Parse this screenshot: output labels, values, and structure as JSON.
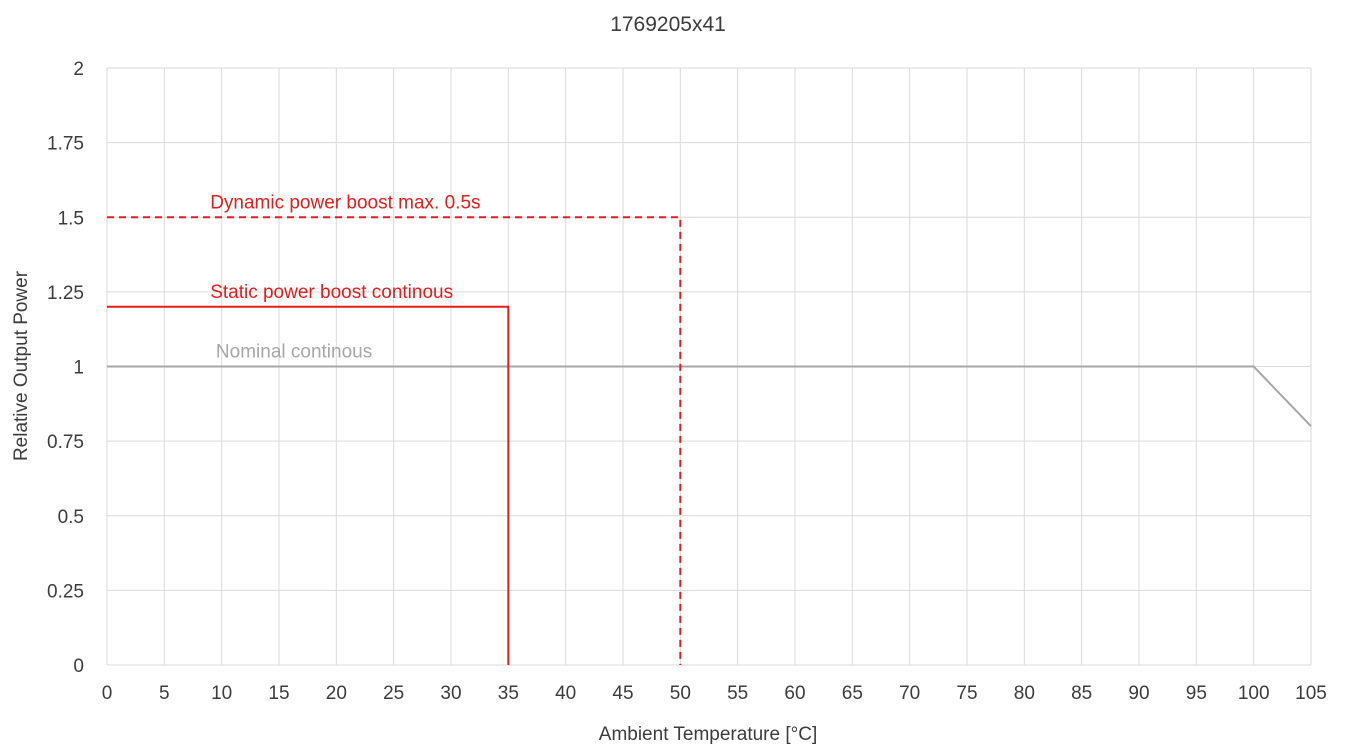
{
  "chart_data": {
    "type": "line",
    "title": "1769205x41",
    "xlabel": "Ambient Temperature [°C]",
    "ylabel": "Relative Output Power",
    "xlim": [
      0,
      105
    ],
    "ylim": [
      0,
      2
    ],
    "x_ticks": [
      0,
      5,
      10,
      15,
      20,
      25,
      30,
      35,
      40,
      45,
      50,
      55,
      60,
      65,
      70,
      75,
      80,
      85,
      90,
      95,
      100,
      105
    ],
    "y_ticks": [
      0,
      0.25,
      0.5,
      0.75,
      1,
      1.25,
      1.5,
      1.75,
      2
    ],
    "y_tick_labels": [
      "0",
      "0.25",
      "0.5",
      "0.75",
      "1",
      "1.25",
      "1.5",
      "1.75",
      "2"
    ],
    "grid": true,
    "legend": "none",
    "series": [
      {
        "color": "#a6a6a6",
        "dash": "solid",
        "x": [
          0,
          100,
          105
        ],
        "y": [
          1,
          1,
          0.8
        ]
      },
      {
        "color": "#e81a1a",
        "dash": "solid",
        "x": [
          0,
          35,
          35
        ],
        "y": [
          1.2,
          1.2,
          0
        ]
      },
      {
        "color": "#e81a1a",
        "dash": "dashed",
        "x": [
          0,
          50,
          50
        ],
        "y": [
          1.5,
          1.5,
          0
        ]
      }
    ],
    "annotations": [
      {
        "text": "Nominal continous",
        "x": 9.5,
        "y": 1.03,
        "color": "#a6a6a6"
      },
      {
        "text": "Static power boost continous",
        "x": 9,
        "y": 1.23,
        "color": "#e81a1a"
      },
      {
        "text": "Dynamic power boost max. 0.5s",
        "x": 9,
        "y": 1.53,
        "color": "#e81a1a"
      }
    ]
  }
}
